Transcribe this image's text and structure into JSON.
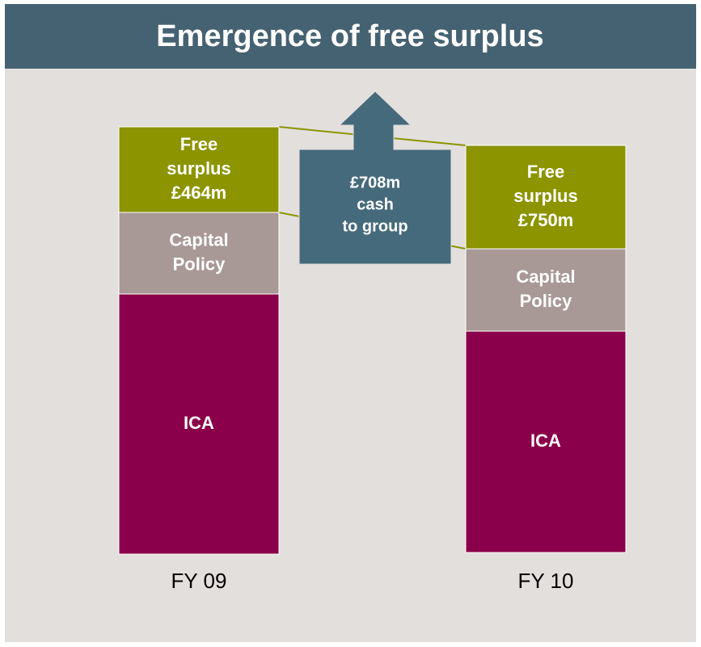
{
  "title": "Emergence of free surplus",
  "bars": [
    {
      "label": "FY 09",
      "segments": [
        {
          "lines": [
            "Free",
            "surplus",
            "£464m"
          ]
        },
        {
          "lines": [
            "Capital",
            "Policy"
          ]
        },
        {
          "lines": [
            "ICA"
          ]
        }
      ]
    },
    {
      "label": "FY 10",
      "segments": [
        {
          "lines": [
            "Free",
            "surplus",
            "£750m"
          ]
        },
        {
          "lines": [
            "Capital",
            "Policy"
          ]
        },
        {
          "lines": [
            "ICA"
          ]
        }
      ]
    }
  ],
  "callout": {
    "lines": [
      "£708m",
      "cash",
      "to group"
    ]
  }
}
